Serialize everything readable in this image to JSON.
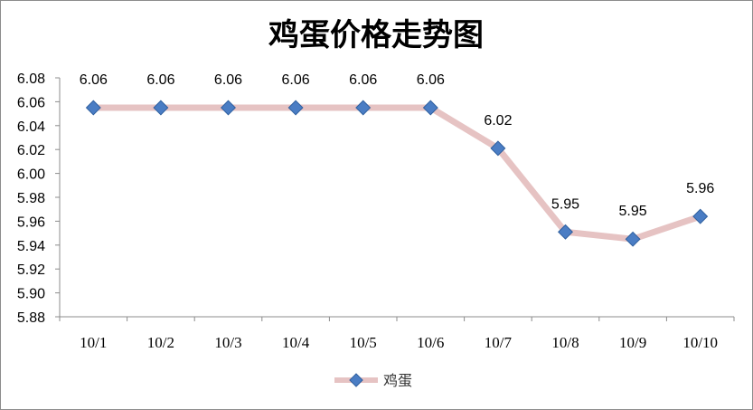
{
  "chart_data": {
    "type": "line",
    "title": "鸡蛋价格走势图",
    "xlabel": "",
    "ylabel": "",
    "categories": [
      "10/1",
      "10/2",
      "10/3",
      "10/4",
      "10/5",
      "10/6",
      "10/7",
      "10/8",
      "10/9",
      "10/10"
    ],
    "series": [
      {
        "name": "鸡蛋",
        "values": [
          6.055,
          6.055,
          6.055,
          6.055,
          6.055,
          6.055,
          6.021,
          5.951,
          5.945,
          5.964
        ],
        "labels": [
          "6.06",
          "6.06",
          "6.06",
          "6.06",
          "6.06",
          "6.06",
          "6.02",
          "5.95",
          "5.95",
          "5.96"
        ]
      }
    ],
    "ylim": [
      5.88,
      6.08
    ],
    "yticks": [
      "5.88",
      "5.90",
      "5.92",
      "5.94",
      "5.96",
      "5.98",
      "6.00",
      "6.02",
      "6.04",
      "6.06",
      "6.08"
    ],
    "grid": false,
    "legend_position": "bottom",
    "colors": {
      "line": "#e6c3c3",
      "marker": "#4a7dc4",
      "marker_edge": "#2f5f9e"
    }
  }
}
